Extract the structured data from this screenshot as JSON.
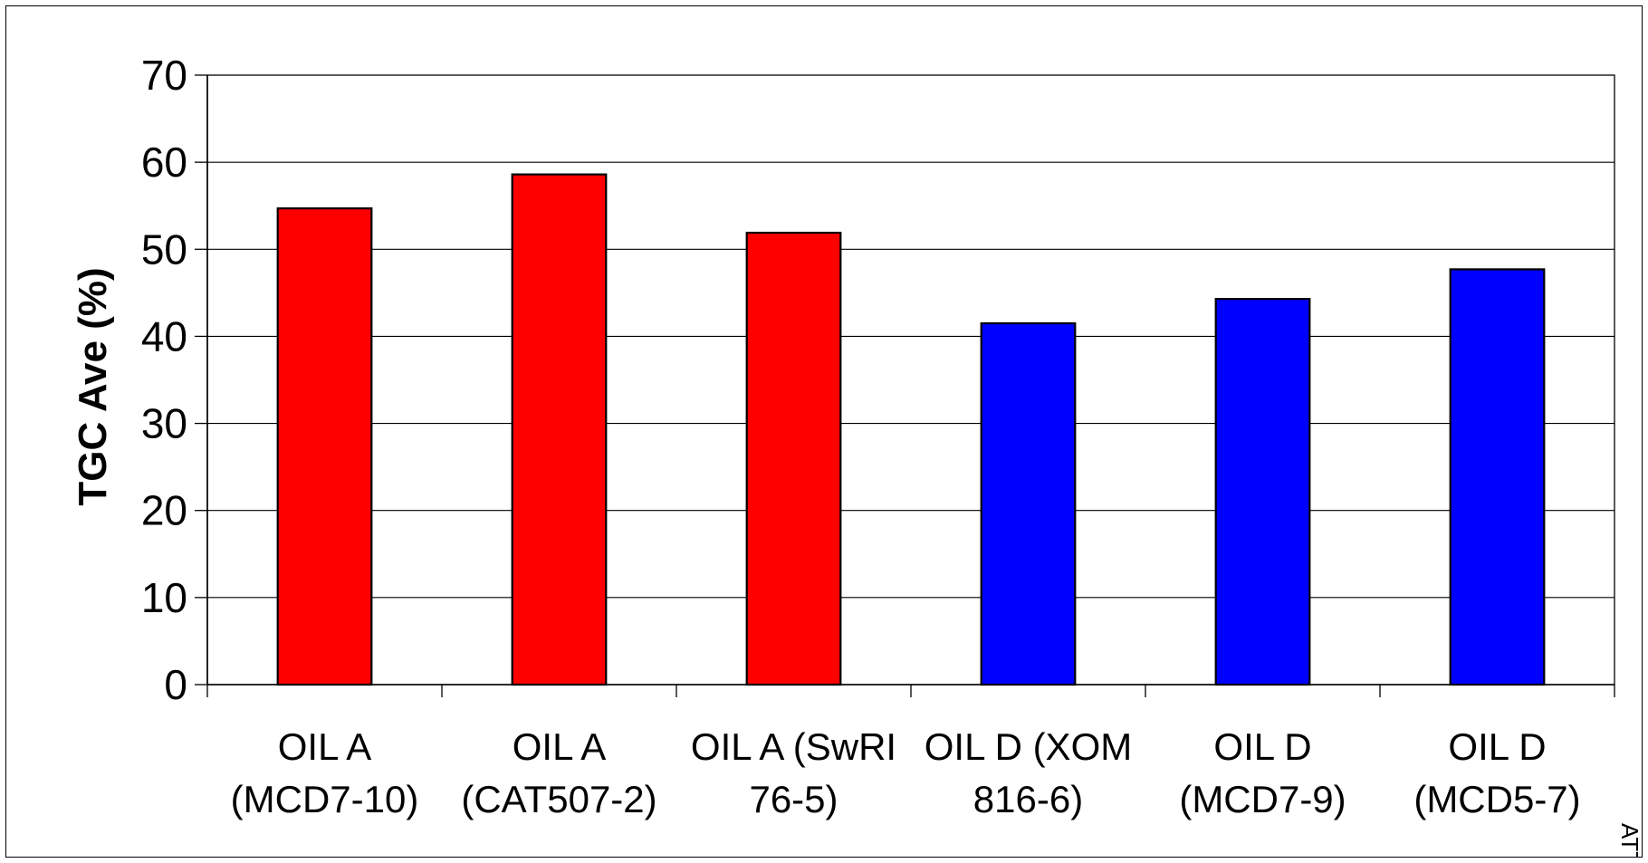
{
  "chart_data": {
    "type": "bar",
    "categories": [
      [
        "OIL A",
        "(MCD7-10)"
      ],
      [
        "OIL A",
        "(CAT507-2)"
      ],
      [
        "OIL A (SwRI",
        "76-5)"
      ],
      [
        "OIL D (XOM",
        "816-6)"
      ],
      [
        "OIL D",
        "(MCD7-9)"
      ],
      [
        "OIL D",
        "(MCD5-7)"
      ]
    ],
    "values": [
      54.7,
      58.6,
      51.9,
      41.5,
      44.3,
      47.7
    ],
    "bar_colors": [
      "#ff0000",
      "#ff0000",
      "#ff0000",
      "#0000ff",
      "#0000ff",
      "#0000ff"
    ],
    "title": "",
    "xlabel": "",
    "ylabel": "TGC Ave (%)",
    "ylim": [
      0,
      70
    ],
    "yticks": [
      0,
      10,
      20,
      30,
      40,
      50,
      60,
      70
    ],
    "grid": "horizontal",
    "legend": "none"
  },
  "side_stamp": "ATTA"
}
